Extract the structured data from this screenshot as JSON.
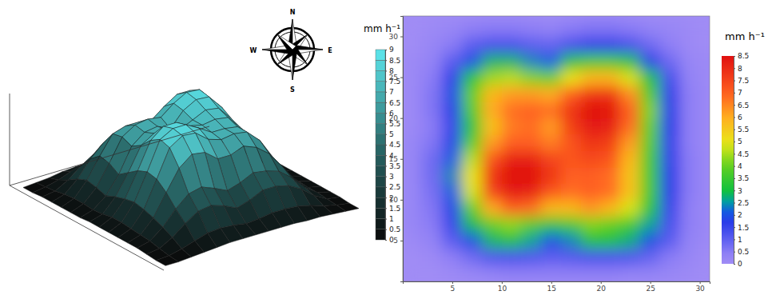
{
  "chart_data": [
    {
      "type": "surface",
      "x": [
        1,
        3,
        5,
        7,
        9,
        11,
        13,
        15,
        17,
        19,
        21,
        23,
        25,
        27,
        29,
        31
      ],
      "y": [
        1,
        3,
        5,
        7,
        9,
        11,
        13,
        15,
        17,
        19,
        21,
        23,
        25,
        27,
        29,
        31
      ],
      "z": [
        [
          0,
          0,
          0.1,
          0.2,
          0.3,
          0.4,
          0.4,
          0.4,
          0.4,
          0.4,
          0.4,
          0.3,
          0.3,
          0.2,
          0.1,
          0
        ],
        [
          0,
          0.1,
          0.4,
          0.8,
          1.2,
          1.3,
          1.2,
          1,
          1.1,
          1.3,
          1.3,
          1.2,
          0.9,
          0.5,
          0.2,
          0
        ],
        [
          0.1,
          0.3,
          1,
          2,
          2.8,
          3,
          2.6,
          2,
          2.4,
          3,
          3,
          2.7,
          2,
          1,
          0.3,
          0.1
        ],
        [
          0.2,
          0.5,
          1.5,
          2.9,
          4,
          4.3,
          3.8,
          3.2,
          3.6,
          4.2,
          4,
          3.6,
          2.6,
          1.3,
          0.4,
          0.1
        ],
        [
          0.2,
          0.6,
          1.9,
          4,
          6,
          7,
          6.8,
          5.8,
          5.8,
          6.3,
          5.8,
          4.8,
          3.2,
          1.5,
          0.4,
          0.1
        ],
        [
          0.2,
          0.7,
          2.2,
          4.8,
          7.5,
          8.3,
          8.2,
          7.2,
          6.8,
          7,
          6.8,
          5.6,
          3.6,
          1.7,
          0.5,
          0.1
        ],
        [
          0.2,
          0.8,
          2.4,
          5,
          7.8,
          8.5,
          8.5,
          7.8,
          7,
          7,
          6.8,
          5.6,
          3.6,
          1.7,
          0.5,
          0.1
        ],
        [
          0.2,
          0.8,
          2.2,
          4.6,
          7.2,
          8.2,
          8.2,
          7.5,
          7.2,
          7.4,
          7.2,
          5.8,
          3.6,
          1.6,
          0.5,
          0.1
        ],
        [
          0.2,
          0.6,
          1.9,
          3.9,
          6.2,
          7,
          7,
          6.6,
          7.2,
          7.8,
          7.6,
          6.2,
          3.8,
          1.6,
          0.4,
          0.1
        ],
        [
          0.1,
          0.5,
          1.5,
          3.2,
          5.6,
          6.6,
          6.8,
          6.2,
          7.6,
          8.3,
          8.2,
          6.8,
          4,
          1.7,
          0.4,
          0.1
        ],
        [
          0.1,
          0.6,
          1.8,
          3.8,
          6,
          6.8,
          7,
          6.8,
          7.8,
          8.5,
          8.4,
          7,
          4.2,
          1.8,
          0.4,
          0.1
        ],
        [
          0.1,
          0.6,
          2,
          4,
          5.8,
          6.2,
          6.2,
          6,
          7,
          7.8,
          7.8,
          6.4,
          3.8,
          1.6,
          0.4,
          0.1
        ],
        [
          0.1,
          0.5,
          1.6,
          3.2,
          4.4,
          4.6,
          4.2,
          4,
          5,
          5.8,
          5.8,
          4.8,
          3,
          1.3,
          0.3,
          0.1
        ],
        [
          0.1,
          0.3,
          1,
          2,
          2.8,
          2.8,
          2.4,
          2.2,
          3,
          3.6,
          3.6,
          3,
          1.8,
          0.8,
          0.2,
          0.1
        ],
        [
          0,
          0.2,
          0.5,
          1,
          1.3,
          1.3,
          1,
          0.9,
          1.3,
          1.6,
          1.6,
          1.3,
          0.8,
          0.4,
          0.1,
          0
        ],
        [
          0,
          0.1,
          0.2,
          0.4,
          0.5,
          0.5,
          0.4,
          0.3,
          0.5,
          0.6,
          0.6,
          0.5,
          0.3,
          0.2,
          0.1,
          0
        ]
      ],
      "xlim": [
        0,
        31
      ],
      "ylim": [
        0,
        32.5
      ],
      "zlim": [
        0,
        9
      ],
      "tick_labels": false,
      "colorbar_title": "mm h⁻¹",
      "colorbar_range": [
        0,
        9
      ],
      "colorbar_ticks": [
        0,
        0.5,
        1,
        1.5,
        2,
        2.5,
        3,
        3.5,
        4,
        4.5,
        5,
        5.5,
        6,
        6.5,
        7,
        7.5,
        8,
        8.5,
        9
      ],
      "compass_labels": [
        "N",
        "E",
        "S",
        "W"
      ]
    },
    {
      "type": "heatmap",
      "x": [
        1,
        3,
        5,
        7,
        9,
        11,
        13,
        15,
        17,
        19,
        21,
        23,
        25,
        27,
        29,
        31
      ],
      "y": [
        1,
        3,
        5,
        7,
        9,
        11,
        13,
        15,
        17,
        19,
        21,
        23,
        25,
        27,
        29,
        31
      ],
      "z": [
        [
          0,
          0,
          0.1,
          0.2,
          0.3,
          0.4,
          0.4,
          0.4,
          0.4,
          0.4,
          0.4,
          0.3,
          0.3,
          0.2,
          0.1,
          0
        ],
        [
          0,
          0.1,
          0.4,
          0.8,
          1.2,
          1.3,
          1.2,
          1,
          1.1,
          1.3,
          1.3,
          1.2,
          0.9,
          0.5,
          0.2,
          0
        ],
        [
          0.1,
          0.3,
          1,
          2,
          2.8,
          3,
          2.6,
          2,
          2.4,
          3,
          3,
          2.7,
          2,
          1,
          0.3,
          0.1
        ],
        [
          0.2,
          0.5,
          1.5,
          2.9,
          4,
          4.3,
          3.8,
          3.2,
          3.6,
          4.2,
          4,
          3.6,
          2.6,
          1.3,
          0.4,
          0.1
        ],
        [
          0.2,
          0.6,
          1.9,
          4,
          6,
          7,
          6.8,
          5.8,
          5.8,
          6.3,
          5.8,
          4.8,
          3.2,
          1.5,
          0.4,
          0.1
        ],
        [
          0.2,
          0.7,
          2.2,
          4.8,
          7.5,
          8.3,
          8.2,
          7.2,
          6.8,
          7,
          6.8,
          5.6,
          3.6,
          1.7,
          0.5,
          0.1
        ],
        [
          0.2,
          0.8,
          2.4,
          5,
          7.8,
          8.5,
          8.5,
          7.8,
          7,
          7,
          6.8,
          5.6,
          3.6,
          1.7,
          0.5,
          0.1
        ],
        [
          0.2,
          0.8,
          2.2,
          4.6,
          7.2,
          8.2,
          8.2,
          7.5,
          7.2,
          7.4,
          7.2,
          5.8,
          3.6,
          1.6,
          0.5,
          0.1
        ],
        [
          0.2,
          0.6,
          1.9,
          3.9,
          6.2,
          7,
          7,
          6.6,
          7.2,
          7.8,
          7.6,
          6.2,
          3.8,
          1.6,
          0.4,
          0.1
        ],
        [
          0.1,
          0.5,
          1.5,
          3.2,
          5.6,
          6.6,
          6.8,
          6.2,
          7.6,
          8.3,
          8.2,
          6.8,
          4,
          1.7,
          0.4,
          0.1
        ],
        [
          0.1,
          0.6,
          1.8,
          3.8,
          6,
          6.8,
          7,
          6.8,
          7.8,
          8.5,
          8.4,
          7,
          4.2,
          1.8,
          0.4,
          0.1
        ],
        [
          0.1,
          0.6,
          2,
          4,
          5.8,
          6.2,
          6.2,
          6,
          7,
          7.8,
          7.8,
          6.4,
          3.8,
          1.6,
          0.4,
          0.1
        ],
        [
          0.1,
          0.5,
          1.6,
          3.2,
          4.4,
          4.6,
          4.2,
          4,
          5,
          5.8,
          5.8,
          4.8,
          3,
          1.3,
          0.3,
          0.1
        ],
        [
          0.1,
          0.3,
          1,
          2,
          2.8,
          2.8,
          2.4,
          2.2,
          3,
          3.6,
          3.6,
          3,
          1.8,
          0.8,
          0.2,
          0.1
        ],
        [
          0,
          0.2,
          0.5,
          1,
          1.3,
          1.3,
          1,
          0.9,
          1.3,
          1.6,
          1.6,
          1.3,
          0.8,
          0.4,
          0.1,
          0
        ],
        [
          0,
          0.1,
          0.2,
          0.4,
          0.5,
          0.5,
          0.4,
          0.3,
          0.5,
          0.6,
          0.6,
          0.5,
          0.3,
          0.2,
          0.1,
          0
        ]
      ],
      "xlim": [
        0,
        31
      ],
      "ylim": [
        0,
        32.5
      ],
      "xticks": [
        5,
        10,
        15,
        20,
        25,
        30
      ],
      "yticks": [
        5,
        10,
        15,
        20,
        25,
        30
      ],
      "colorbar_title": "mm h⁻¹",
      "colorbar_range": [
        0,
        8.5
      ],
      "colorbar_ticks": [
        0,
        0.5,
        1,
        1.5,
        2,
        2.5,
        3,
        3.5,
        4,
        4.5,
        5,
        5.5,
        6,
        6.5,
        7,
        7.5,
        8,
        8.5
      ]
    }
  ]
}
